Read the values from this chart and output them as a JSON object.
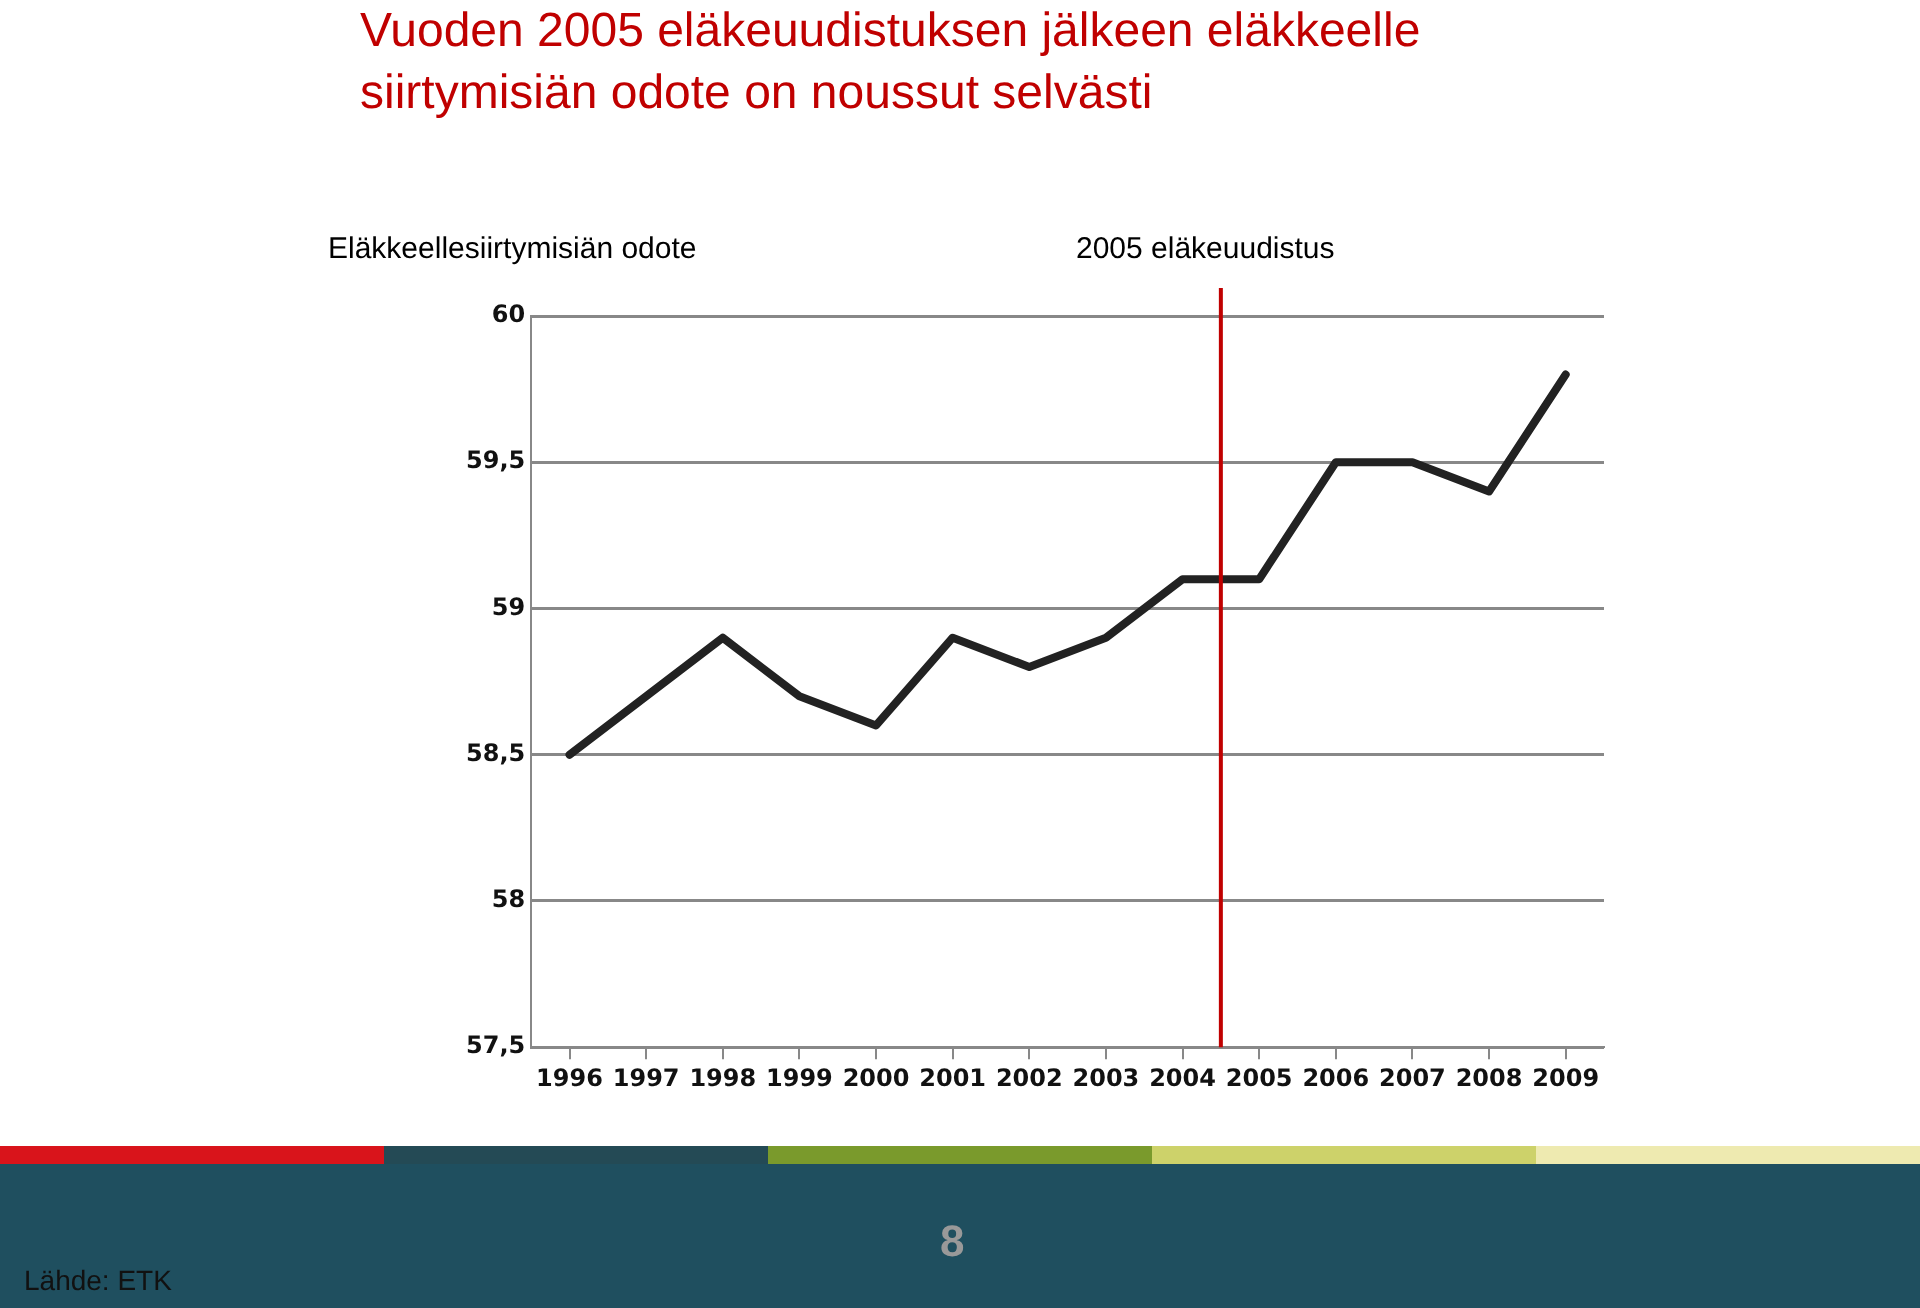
{
  "chart_data": {
    "type": "line",
    "title": "Vuoden 2005 eläkeuudistuksen jälkeen eläkkeelle siirtymisiän odote on noussut selvästi",
    "subtitle": "Eläkkeellesiirtymisiän odote",
    "x": [
      1996,
      1997,
      1998,
      1999,
      2000,
      2001,
      2002,
      2003,
      2004,
      2005,
      2006,
      2007,
      2008,
      2009
    ],
    "series": [
      {
        "color": "#222222",
        "values": [
          58.5,
          58.7,
          58.9,
          58.7,
          58.6,
          58.9,
          58.8,
          58.9,
          59.1,
          59.1,
          59.5,
          59.5,
          59.4,
          59.8
        ]
      }
    ],
    "xlim": [
      1995.5,
      2009.5
    ],
    "xticks": [
      1996,
      1997,
      1998,
      1999,
      2000,
      2001,
      2002,
      2003,
      2004,
      2005,
      2006,
      2007,
      2008,
      2009
    ],
    "ylim": [
      57.5,
      60
    ],
    "yticks": [
      {
        "value": 57.5,
        "label": "57,5"
      },
      58,
      {
        "value": 58.5,
        "label": "58,5"
      },
      59,
      {
        "value": 59.5,
        "label": "59,5"
      },
      60
    ],
    "ref_lines": [
      {
        "axis": "x",
        "value": 2004.5,
        "label": "2005 eläkeuudistus",
        "color": "#c00000"
      }
    ],
    "grid": "y",
    "legend": false,
    "marker": "none",
    "line_style": "solid",
    "annotations": [
      "Lähde: ETK",
      "8"
    ]
  }
}
